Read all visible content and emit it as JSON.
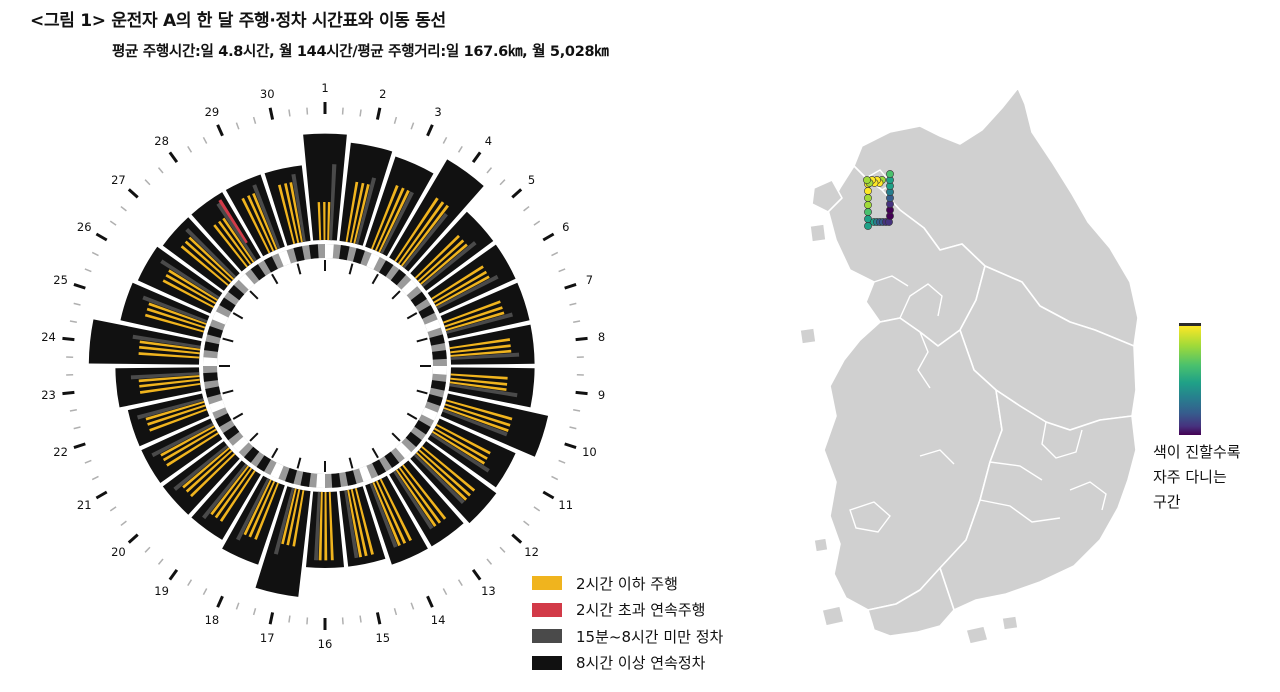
{
  "title": "<그림 1> 운전자 A의 한 달 주행·정차 시간표와 이동 동선",
  "subtitle": "평균 주행시간:일 4.8시간, 월 144시간/평균 주행거리:일 167.6㎞, 월 5,028㎞",
  "chart_data": [
    {
      "type": "radial-bar",
      "categories": [
        "1",
        "2",
        "3",
        "4",
        "5",
        "6",
        "7",
        "8",
        "9",
        "10",
        "11",
        "12",
        "13",
        "14",
        "15",
        "16",
        "17",
        "18",
        "19",
        "20",
        "21",
        "22",
        "23",
        "24",
        "25",
        "26",
        "27",
        "28",
        "29",
        "30"
      ],
      "series": [
        {
          "name": "2시간 이하 주행",
          "color": "#f0b41e",
          "values": [
            1.0,
            1.6,
            1.8,
            2.0,
            1.6,
            1.6,
            1.6,
            1.6,
            1.5,
            1.8,
            1.6,
            1.8,
            1.8,
            1.8,
            1.8,
            1.8,
            1.5,
            1.6,
            1.6,
            1.6,
            1.6,
            1.6,
            1.6,
            1.6,
            1.6,
            1.5,
            1.6,
            1.4,
            1.6,
            1.6
          ]
        },
        {
          "name": "2시간 초과 연속주행",
          "color": "#d23a48",
          "values": [
            0,
            0,
            0,
            0,
            0,
            0,
            0,
            0,
            0,
            0,
            0,
            0,
            0,
            0,
            0,
            0,
            0,
            0,
            0,
            0,
            0,
            0,
            0,
            0,
            0,
            0,
            0,
            0.8,
            0,
            0
          ]
        },
        {
          "name": "15분~8시간 미만 정차",
          "color": "#4a4a4a",
          "values": [
            2.0,
            1.8,
            1.8,
            1.8,
            1.8,
            1.8,
            1.8,
            1.8,
            1.8,
            1.8,
            1.8,
            1.8,
            1.8,
            1.8,
            1.8,
            1.8,
            1.8,
            1.8,
            1.8,
            1.8,
            1.8,
            1.8,
            1.8,
            1.8,
            1.8,
            1.8,
            1.8,
            1.8,
            1.8,
            1.8
          ]
        },
        {
          "name": "8시간 이상 연속정차",
          "color": "#111111",
          "values": [
            2.8,
            2.6,
            2.5,
            3.0,
            2.2,
            2.2,
            2.2,
            2.2,
            2.2,
            2.7,
            2.2,
            2.3,
            2.2,
            2.2,
            2.0,
            2.0,
            2.8,
            2.2,
            2.0,
            2.0,
            2.0,
            2.0,
            2.2,
            2.9,
            2.2,
            2.1,
            2.0,
            2.0,
            2.0,
            2.0
          ]
        }
      ],
      "legend_position": "bottom-right"
    },
    {
      "type": "map",
      "region": "대한민국",
      "colorscale": "viridis",
      "colorbar_label": "색이 진할수록\n자주 다니는\n구간",
      "colorbar_label_lines": [
        "색이 진할수록",
        "자주 다니는",
        "구간"
      ],
      "route_points": [
        {
          "v": 0.95
        },
        {
          "v": 0.9
        },
        {
          "v": 0.85
        },
        {
          "v": 0.8
        },
        {
          "v": 0.7
        },
        {
          "v": 0.6
        },
        {
          "v": 0.55
        },
        {
          "v": 0.5
        },
        {
          "v": 0.45
        },
        {
          "v": 0.35
        },
        {
          "v": 0.3
        },
        {
          "v": 0.2
        },
        {
          "v": 0.15
        },
        {
          "v": 0.1
        },
        {
          "v": 0.1
        },
        {
          "v": 0.2
        },
        {
          "v": 0.3
        },
        {
          "v": 0.4
        },
        {
          "v": 0.5
        },
        {
          "v": 0.6
        },
        {
          "v": 0.7
        },
        {
          "v": 0.8
        },
        {
          "v": 0.9
        },
        {
          "v": 0.95
        },
        {
          "v": 0.95
        },
        {
          "v": 0.9
        },
        {
          "v": 0.85
        },
        {
          "v": 0.8
        }
      ]
    }
  ],
  "colors": {
    "driving": "#f0b41e",
    "long_driving": "#d23a48",
    "short_stop": "#4a4a4a",
    "long_stop": "#111111",
    "map_fill": "#d0d0d0",
    "map_border": "#ffffff"
  }
}
